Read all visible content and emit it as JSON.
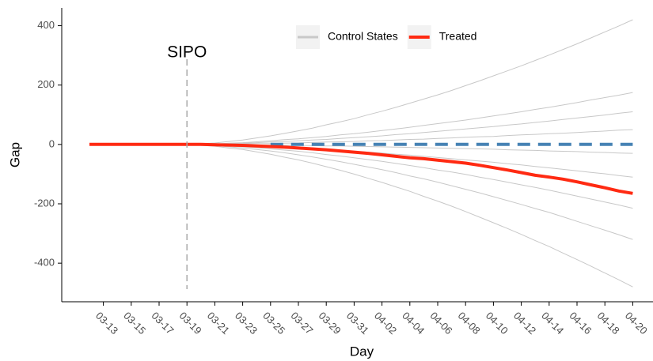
{
  "chart_data": {
    "type": "line",
    "x_label": "Day",
    "y_label": "Gap",
    "categories": [
      null,
      "03-13",
      null,
      "03-15",
      null,
      "03-17",
      null,
      "03-19",
      null,
      "03-21",
      null,
      "03-23",
      null,
      "03-25",
      null,
      "03-27",
      null,
      "03-29",
      null,
      "03-31",
      null,
      "04-02",
      null,
      "04-04",
      null,
      "04-06",
      null,
      "04-08",
      null,
      "04-10",
      null,
      "04-12",
      null,
      "04-14",
      null,
      "04-16",
      null,
      "04-18",
      null,
      "04-20"
    ],
    "ylim": [
      -530,
      460
    ],
    "yticks": [
      -400,
      -200,
      0,
      200,
      400
    ],
    "legend_position": "top",
    "annotations": [
      {
        "text": "SIPO",
        "x": "03-19"
      }
    ],
    "series": [
      {
        "name": "Control States",
        "color": "#c8c8c8",
        "lines": [
          [
            null,
            null,
            null,
            null,
            null,
            null,
            null,
            0,
            3,
            5,
            10,
            15,
            22,
            29,
            37,
            46,
            55,
            66,
            76,
            87,
            100,
            112,
            125,
            139,
            153,
            167,
            182,
            198,
            214,
            231,
            248,
            265,
            283,
            301,
            320,
            339,
            359,
            379,
            399,
            420
          ],
          [
            null,
            null,
            null,
            null,
            null,
            null,
            null,
            0,
            1,
            2,
            4,
            6,
            9,
            12,
            16,
            19,
            23,
            27,
            32,
            36,
            41,
            47,
            52,
            58,
            64,
            70,
            76,
            82,
            89,
            96,
            103,
            110,
            118,
            125,
            133,
            141,
            150,
            158,
            166,
            175
          ],
          [
            null,
            null,
            null,
            null,
            null,
            null,
            null,
            0,
            1,
            1,
            3,
            4,
            6,
            8,
            10,
            12,
            15,
            17,
            20,
            23,
            26,
            29,
            33,
            36,
            40,
            44,
            48,
            52,
            56,
            60,
            65,
            69,
            74,
            79,
            84,
            89,
            94,
            99,
            105,
            110
          ],
          [
            null,
            null,
            null,
            null,
            null,
            null,
            null,
            0,
            0,
            1,
            1,
            2,
            3,
            3,
            4,
            5,
            7,
            8,
            9,
            10,
            12,
            13,
            15,
            17,
            18,
            20,
            22,
            24,
            26,
            27,
            30,
            32,
            34,
            36,
            38,
            40,
            43,
            45,
            48,
            50
          ],
          [
            null,
            null,
            null,
            null,
            null,
            null,
            null,
            0,
            0,
            0,
            -1,
            -1,
            -2,
            -2,
            -3,
            -3,
            -4,
            -5,
            -5,
            -6,
            -7,
            -8,
            -9,
            -10,
            -11,
            -12,
            -13,
            -14,
            -15,
            -16,
            -18,
            -19,
            -20,
            -22,
            -23,
            -24,
            -26,
            -27,
            -29,
            -30
          ],
          [
            null,
            null,
            null,
            null,
            null,
            null,
            null,
            0,
            -1,
            -1,
            -3,
            -4,
            -6,
            -8,
            -10,
            -12,
            -15,
            -17,
            -20,
            -23,
            -26,
            -29,
            -33,
            -36,
            -40,
            -44,
            -48,
            -52,
            -56,
            -60,
            -65,
            -69,
            -74,
            -79,
            -84,
            -89,
            -94,
            -99,
            -105,
            -110
          ],
          [
            null,
            null,
            null,
            null,
            null,
            null,
            null,
            0,
            -1,
            -3,
            -5,
            -8,
            -11,
            -15,
            -19,
            -23,
            -28,
            -34,
            -39,
            -45,
            -51,
            -57,
            -64,
            -71,
            -78,
            -86,
            -93,
            -101,
            -110,
            -118,
            -127,
            -136,
            -145,
            -154,
            -164,
            -174,
            -184,
            -194,
            -204,
            -215
          ],
          [
            null,
            null,
            null,
            null,
            null,
            null,
            null,
            0,
            -2,
            -4,
            -8,
            -12,
            -17,
            -22,
            -28,
            -35,
            -42,
            -50,
            -58,
            -67,
            -76,
            -85,
            -95,
            -106,
            -116,
            -127,
            -139,
            -151,
            -163,
            -176,
            -189,
            -202,
            -216,
            -229,
            -244,
            -259,
            -274,
            -289,
            -304,
            -320
          ],
          [
            null,
            null,
            null,
            null,
            null,
            null,
            null,
            0,
            -3,
            -6,
            -12,
            -17,
            -25,
            -33,
            -43,
            -52,
            -63,
            -75,
            -87,
            -100,
            -114,
            -128,
            -143,
            -158,
            -175,
            -191,
            -208,
            -226,
            -245,
            -264,
            -283,
            -303,
            -324,
            -344,
            -366,
            -388,
            -410,
            -433,
            -456,
            -480
          ]
        ]
      },
      {
        "name": "Treated",
        "color": "#ff2a12",
        "values": [
          0,
          0,
          0,
          0,
          0,
          0,
          0,
          0,
          0,
          -1,
          -2,
          -3,
          -5,
          -7,
          -9,
          -12,
          -15,
          -18,
          -22,
          -26,
          -30,
          -35,
          -40,
          -45,
          -48,
          -53,
          -58,
          -63,
          -70,
          -78,
          -86,
          -95,
          -104,
          -110,
          -117,
          -126,
          -136,
          -146,
          -157,
          -165
        ]
      }
    ],
    "reference_line": {
      "color": "#4682b4",
      "values": [
        null,
        null,
        null,
        null,
        null,
        null,
        null,
        null,
        null,
        null,
        null,
        null,
        null,
        0,
        0,
        0,
        0,
        0,
        0,
        0,
        0,
        0,
        0,
        0,
        0,
        0,
        0,
        0,
        0,
        0,
        0,
        0,
        0,
        0,
        0,
        0,
        0,
        0,
        0,
        0
      ]
    }
  }
}
